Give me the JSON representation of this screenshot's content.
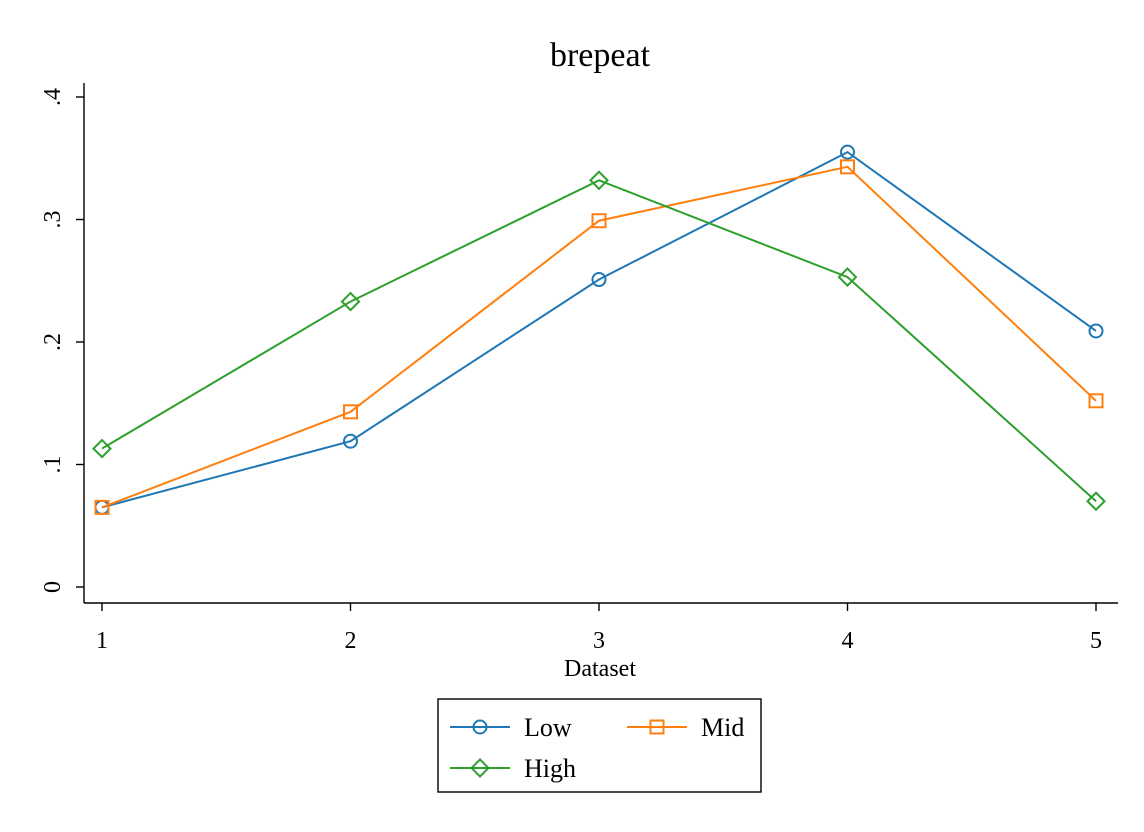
{
  "chart_data": {
    "type": "line",
    "title": "brepeat",
    "xlabel": "Dataset",
    "ylabel": "",
    "x": [
      1,
      2,
      3,
      4,
      5
    ],
    "x_tick_labels": [
      "1",
      "2",
      "3",
      "4",
      "5"
    ],
    "y_ticks": [
      0,
      0.1,
      0.2,
      0.3,
      0.4
    ],
    "y_tick_labels": [
      "0",
      ".1",
      ".2",
      ".3",
      ".4"
    ],
    "xlim": [
      1,
      5
    ],
    "ylim": [
      0,
      0.4
    ],
    "grid": false,
    "legend_position": "bottom",
    "series": [
      {
        "name": "Low",
        "color": "#1f77b4",
        "marker": "circle",
        "values": [
          0.065,
          0.119,
          0.251,
          0.355,
          0.209
        ]
      },
      {
        "name": "Mid",
        "color": "#ff7f0e",
        "marker": "square",
        "values": [
          0.065,
          0.143,
          0.299,
          0.343,
          0.152
        ]
      },
      {
        "name": "High",
        "color": "#2ca02c",
        "marker": "diamond",
        "values": [
          0.113,
          0.233,
          0.332,
          0.253,
          0.07
        ]
      }
    ]
  }
}
